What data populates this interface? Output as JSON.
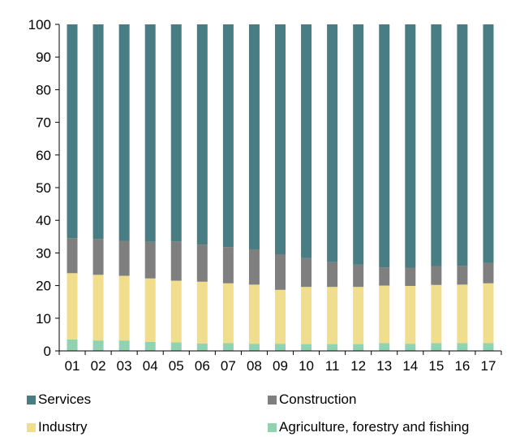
{
  "chart_data": {
    "type": "bar",
    "stacked": true,
    "categories": [
      "01",
      "02",
      "03",
      "04",
      "05",
      "06",
      "07",
      "08",
      "09",
      "10",
      "11",
      "12",
      "13",
      "14",
      "15",
      "16",
      "17"
    ],
    "series": [
      {
        "name": "Agriculture, forestry and fishing",
        "color": "#8fd3b0",
        "values": [
          3.5,
          3.2,
          3.2,
          2.8,
          2.6,
          2.3,
          2.4,
          2.2,
          2.2,
          2.1,
          2.1,
          2.1,
          2.4,
          2.2,
          2.4,
          2.4,
          2.4
        ]
      },
      {
        "name": "Industry",
        "color": "#f0de8c",
        "values": [
          20.3,
          20.1,
          19.8,
          19.4,
          18.9,
          18.9,
          18.3,
          18.1,
          16.5,
          17.5,
          17.5,
          17.5,
          17.6,
          17.7,
          17.8,
          17.9,
          18.3
        ]
      },
      {
        "name": "Construction",
        "color": "#7f7f7f",
        "values": [
          10.7,
          11.0,
          10.7,
          11.2,
          12.0,
          11.3,
          11.1,
          10.8,
          10.9,
          8.8,
          7.6,
          6.8,
          5.6,
          5.6,
          5.8,
          5.8,
          6.2
        ]
      },
      {
        "name": "Services",
        "color": "#487d83",
        "values": [
          65.5,
          65.7,
          66.3,
          66.6,
          66.5,
          67.5,
          68.2,
          68.9,
          70.4,
          71.6,
          72.8,
          73.6,
          74.4,
          74.5,
          74.0,
          73.9,
          73.1
        ]
      }
    ],
    "yticks": [
      0,
      10,
      20,
      30,
      40,
      50,
      60,
      70,
      80,
      90,
      100
    ],
    "ylim": [
      0,
      100
    ],
    "grid": false,
    "legend_placement": "bottom"
  },
  "legend": {
    "services": "Services",
    "construction": "Construction",
    "industry": "Industry",
    "agriculture": "Agriculture, forestry and fishing"
  }
}
